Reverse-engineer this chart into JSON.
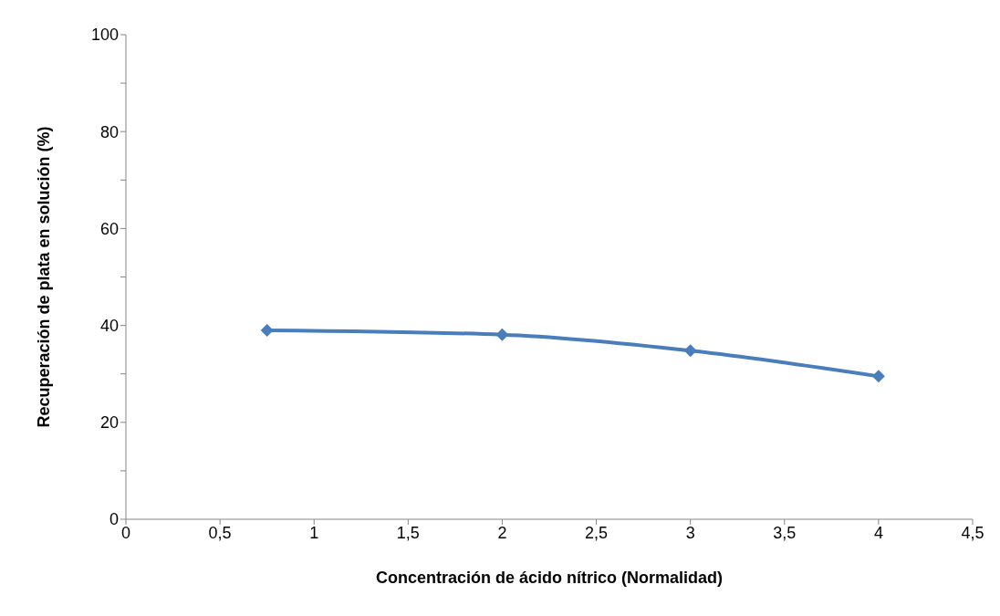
{
  "chart_data": {
    "type": "line",
    "xlabel": "Concentración de ácido nítrico (Normalidad)",
    "ylabel": "Recuperación de plata en solución (%)",
    "x": [
      0.75,
      2,
      3,
      4
    ],
    "series": [
      {
        "color": "#4a7ebb",
        "values": [
          39.0,
          38.1,
          34.8,
          29.5
        ]
      }
    ],
    "xlim": [
      0,
      4.5
    ],
    "xticks": [
      0,
      {
        "value": 0.5,
        "label": "0,5"
      },
      1,
      {
        "value": 1.5,
        "label": "1,5"
      },
      2,
      {
        "value": 2.5,
        "label": "2,5"
      },
      3,
      {
        "value": 3.5,
        "label": "3,5"
      },
      4,
      {
        "value": 4.5,
        "label": "4,5"
      }
    ],
    "ylim": [
      0,
      100
    ],
    "yticks": [
      0,
      {
        "value": 10,
        "label": null
      },
      20,
      {
        "value": 30,
        "label": null
      },
      40,
      {
        "value": 50,
        "label": null
      },
      60,
      {
        "value": 70,
        "label": null
      },
      80,
      {
        "value": 90,
        "label": null
      },
      100
    ],
    "grid": false,
    "legend": false,
    "marker": "diamond",
    "line_style": "solid"
  }
}
